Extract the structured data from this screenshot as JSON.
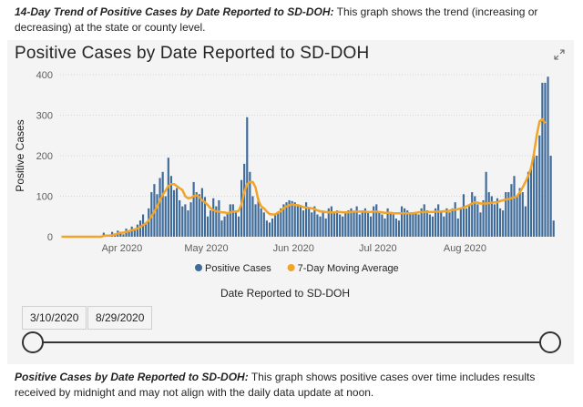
{
  "top_caption": {
    "title": "14-Day Trend of Positive Cases by Date Reported to SD-DOH:",
    "text": " This graph shows the trend (increasing or decreasing) at the state or county level."
  },
  "bottom_caption": {
    "title": "Positive Cases by Date Reported to SD-DOH:",
    "text": " This graph shows positive cases over time includes results received by midnight and may not align with the daily data update at noon."
  },
  "slider": {
    "start_date": "3/10/2020",
    "end_date": "8/29/2020"
  },
  "colors": {
    "bars": "#3e6b9a",
    "line": "#f0a42a"
  },
  "chart_data": {
    "type": "bar",
    "title": "Positive Cases by Date Reported to SD-DOH",
    "xlabel": "Date Reported to SD-DOH",
    "ylabel": "Positive Cases",
    "ylim": [
      0,
      400
    ],
    "yticks": [
      0,
      100,
      200,
      300,
      400
    ],
    "xticks": [
      {
        "label": "Apr 2020",
        "date": "2020-04-01"
      },
      {
        "label": "May 2020",
        "date": "2020-05-01"
      },
      {
        "label": "Jun 2020",
        "date": "2020-06-01"
      },
      {
        "label": "Jul 2020",
        "date": "2020-07-01"
      },
      {
        "label": "Aug 2020",
        "date": "2020-08-01"
      }
    ],
    "x_start": "2020-03-10",
    "x_end": "2020-08-29",
    "grid": "horizontal",
    "legend_position": "bottom-center",
    "series": [
      {
        "name": "Positive Cases",
        "kind": "bar",
        "values": [
          0,
          0,
          0,
          0,
          0,
          0,
          0,
          0,
          0,
          0,
          0,
          0,
          0,
          0,
          2,
          10,
          5,
          3,
          12,
          8,
          15,
          10,
          6,
          20,
          15,
          25,
          18,
          30,
          40,
          55,
          35,
          70,
          110,
          130,
          105,
          145,
          160,
          100,
          195,
          150,
          115,
          120,
          90,
          75,
          80,
          65,
          85,
          135,
          110,
          105,
          120,
          98,
          50,
          65,
          95,
          75,
          90,
          40,
          50,
          60,
          80,
          80,
          65,
          50,
          140,
          180,
          295,
          160,
          100,
          80,
          95,
          70,
          60,
          40,
          35,
          45,
          55,
          60,
          70,
          80,
          85,
          90,
          88,
          85,
          80,
          75,
          65,
          85,
          70,
          60,
          75,
          55,
          50,
          60,
          45,
          70,
          75,
          60,
          65,
          55,
          50,
          60,
          65,
          70,
          60,
          75,
          55,
          65,
          70,
          60,
          50,
          75,
          80,
          60,
          55,
          45,
          70,
          60,
          55,
          45,
          40,
          75,
          70,
          65,
          55,
          60,
          60,
          55,
          70,
          80,
          65,
          55,
          50,
          70,
          80,
          60,
          50,
          70,
          60,
          70,
          85,
          45,
          70,
          105,
          70,
          80,
          110,
          100,
          80,
          60,
          90,
          160,
          110,
          100,
          80,
          95,
          70,
          65,
          110,
          110,
          130,
          150,
          100,
          120,
          110,
          75,
          160,
          170,
          210,
          200,
          250,
          380,
          380,
          395,
          200,
          40
        ]
      },
      {
        "name": "7-Day Moving Average",
        "kind": "line",
        "values": [
          0,
          0,
          0,
          0,
          0,
          0,
          0,
          0,
          0,
          0,
          0,
          0,
          0,
          0,
          0,
          2,
          3,
          3,
          4,
          5,
          8,
          10,
          10,
          12,
          14,
          16,
          18,
          20,
          24,
          29,
          33,
          40,
          50,
          62,
          74,
          90,
          104,
          114,
          125,
          130,
          130,
          125,
          120,
          115,
          100,
          95,
          96,
          100,
          102,
          98,
          90,
          85,
          78,
          70,
          66,
          63,
          62,
          60,
          60,
          58,
          60,
          62,
          62,
          64,
          80,
          110,
          130,
          135,
          135,
          122,
          90,
          75,
          70,
          62,
          56,
          55,
          55,
          60,
          63,
          70,
          75,
          78,
          80,
          78,
          78,
          76,
          73,
          72,
          71,
          70,
          68,
          65,
          63,
          62,
          61,
          60,
          60,
          60,
          61,
          61,
          60,
          60,
          60,
          61,
          62,
          62,
          62,
          62,
          62,
          61,
          61,
          62,
          62,
          61,
          60,
          59,
          59,
          59,
          58,
          58,
          58,
          58,
          58,
          58,
          58,
          58,
          59,
          60,
          61,
          61,
          61,
          61,
          61,
          62,
          62,
          62,
          63,
          63,
          64,
          66,
          67,
          68,
          70,
          72,
          75,
          78,
          82,
          85,
          84,
          82,
          82,
          82,
          83,
          84,
          85,
          85,
          88,
          90,
          92,
          93,
          95,
          97,
          100,
          110,
          122,
          135,
          150,
          170,
          205,
          250,
          285,
          290,
          280
        ]
      }
    ]
  }
}
